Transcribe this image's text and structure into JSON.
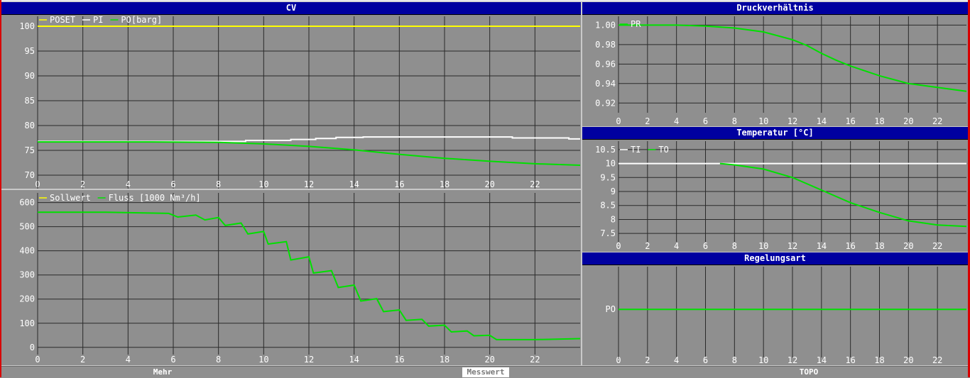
{
  "footer": {
    "buttons": [
      {
        "label": "Mehr",
        "active": false
      },
      {
        "label": "Messwert",
        "active": true
      },
      {
        "label": "TOPO",
        "active": false
      }
    ]
  },
  "charts": {
    "cv": {
      "title": "CV",
      "chart_data": {
        "type": "line",
        "xticks": [
          0,
          2,
          4,
          6,
          8,
          10,
          12,
          14,
          16,
          18,
          20,
          22
        ],
        "yticks": [
          70,
          75,
          80,
          85,
          90,
          95,
          100
        ],
        "xlim": [
          0,
          24
        ],
        "ylim": [
          67,
          102
        ],
        "grid": true,
        "legend_position": "top-left",
        "series": [
          {
            "name": "POSET",
            "color": "#ffff00",
            "x": [
              0,
              24
            ],
            "y": [
              100,
              100
            ]
          },
          {
            "name": "PI",
            "color": "#ffffff",
            "x": [
              0,
              9.2,
              9.2,
              11.2,
              11.2,
              12.3,
              12.3,
              13.2,
              13.2,
              14.4,
              14.4,
              21,
              21,
              23.5,
              23.5,
              24
            ],
            "y": [
              76.8,
              76.8,
              77,
              77,
              77.2,
              77.2,
              77.4,
              77.4,
              77.6,
              77.6,
              77.7,
              77.7,
              77.5,
              77.5,
              77.3,
              77.3
            ]
          },
          {
            "name": "PO[barg]",
            "color": "#00e000",
            "x": [
              0,
              5,
              8,
              10,
              12,
              14,
              16,
              18,
              20,
              22,
              24
            ],
            "y": [
              76.7,
              76.7,
              76.6,
              76.3,
              75.8,
              75.1,
              74.2,
              73.4,
              72.8,
              72.3,
              72
            ]
          }
        ]
      }
    },
    "flow": {
      "title": "",
      "chart_data": {
        "type": "line",
        "xticks": [
          0,
          2,
          4,
          6,
          8,
          10,
          12,
          14,
          16,
          18,
          20,
          22
        ],
        "yticks": [
          0,
          100,
          200,
          300,
          400,
          500,
          600
        ],
        "xlim": [
          0,
          24
        ],
        "ylim": [
          -30,
          640
        ],
        "grid": true,
        "legend_position": "top-left",
        "series": [
          {
            "name": "Sollwert",
            "color": "#ffff00",
            "x": [],
            "y": []
          },
          {
            "name": "Fluss [1000 Nm³/h]",
            "color": "#00e000",
            "x": [
              0,
              3,
              5.8,
              6.2,
              7,
              7.4,
              8,
              8.3,
              9,
              9.3,
              10,
              10.2,
              11,
              11.2,
              12,
              12.2,
              13,
              13.3,
              14,
              14.3,
              15,
              15.3,
              16,
              16.3,
              17,
              17.3,
              18,
              18.3,
              19,
              19.3,
              20,
              20.3,
              22,
              24
            ],
            "y": [
              560,
              560,
              555,
              540,
              548,
              528,
              538,
              505,
              515,
              470,
              480,
              428,
              438,
              362,
              375,
              308,
              318,
              248,
              258,
              192,
              202,
              148,
              155,
              112,
              116,
              88,
              92,
              64,
              68,
              48,
              50,
              32,
              32,
              36
            ]
          }
        ]
      }
    },
    "dv": {
      "title": "Druckverhältnis",
      "chart_data": {
        "type": "line",
        "xticks": [
          0,
          2,
          4,
          6,
          8,
          10,
          12,
          14,
          16,
          18,
          20,
          22
        ],
        "yticks": [
          0.92,
          0.94,
          0.96,
          0.98,
          1.0
        ],
        "xlim": [
          0,
          24
        ],
        "ylim": [
          0.91,
          1.009
        ],
        "grid": true,
        "legend_position": "top-left",
        "series": [
          {
            "name": "PR",
            "color": "#00e000",
            "x": [
              0,
              4,
              6,
              8,
              10,
              12,
              13,
              14,
              15,
              16,
              18,
              20,
              22,
              24
            ],
            "y": [
              1.0,
              1.0,
              0.999,
              0.997,
              0.993,
              0.985,
              0.979,
              0.971,
              0.964,
              0.958,
              0.948,
              0.94,
              0.936,
              0.932
            ]
          }
        ]
      }
    },
    "temp": {
      "title": "Temperatur [°C]",
      "chart_data": {
        "type": "line",
        "xticks": [
          0,
          2,
          4,
          6,
          8,
          10,
          12,
          14,
          16,
          18,
          20,
          22
        ],
        "yticks": [
          7.5,
          8.0,
          8.5,
          9.0,
          9.5,
          10.0,
          10.5
        ],
        "xlim": [
          0,
          24
        ],
        "ylim": [
          7.2,
          10.8
        ],
        "grid": true,
        "legend_position": "top-left",
        "series": [
          {
            "name": "TI",
            "color": "#ffffff",
            "x": [
              0,
              24
            ],
            "y": [
              10,
              10
            ]
          },
          {
            "name": "TO",
            "color": "#00e000",
            "x": [
              7,
              8,
              10,
              12,
              14,
              16,
              18,
              20,
              22,
              24
            ],
            "y": [
              10,
              9.95,
              9.8,
              9.5,
              9.05,
              8.6,
              8.25,
              7.95,
              7.8,
              7.75
            ]
          }
        ]
      }
    },
    "reg": {
      "title": "Regelungsart",
      "chart_data": {
        "type": "line",
        "xticks": [
          0,
          2,
          4,
          6,
          8,
          10,
          12,
          14,
          16,
          18,
          20,
          22
        ],
        "ycategories": [
          "PO"
        ],
        "xlim": [
          0,
          24
        ],
        "grid": true,
        "series": [
          {
            "name": "",
            "color": "#00e000",
            "x": [
              0,
              24
            ],
            "y": [
              "PO",
              "PO"
            ]
          }
        ]
      }
    }
  }
}
